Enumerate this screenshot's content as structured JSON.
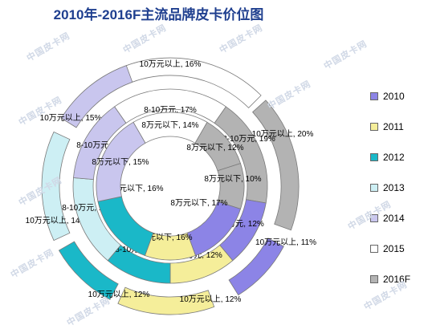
{
  "chart_data": {
    "type": "donut",
    "title": "2010年-2016F主流品牌皮卡价位图",
    "watermark": "中国皮卡网",
    "series": [
      {
        "name": "2010",
        "color": "#8C84E6",
        "segments": [
          {
            "label": "8万元以下, 17%",
            "value": 17
          },
          {
            "label": "8-10万元, 12%",
            "value": 12
          },
          {
            "label": "10万元以上, 11%",
            "value": 11
          }
        ]
      },
      {
        "name": "2011",
        "color": "#F5EE9A",
        "segments": [
          {
            "label": "8万元以下, 16%",
            "value": 16
          },
          {
            "label": "8-10万元, 12%",
            "value": 12
          },
          {
            "label": "10万元以上, 12%",
            "value": 12
          }
        ]
      },
      {
        "name": "2012",
        "color": "#1AB8C8",
        "segments": [
          {
            "label": "8万元以下, 16%",
            "value": 16
          },
          {
            "label": "8-10万元, 12%",
            "value": 12
          },
          {
            "label": "10万元以上, 12%",
            "value": 12
          }
        ]
      },
      {
        "name": "2013",
        "color": "#CDEFF4",
        "segments": [
          {
            "label": "8万元以下, 16%",
            "value": 16
          },
          {
            "label": "8-10万元, 13%",
            "value": 13
          },
          {
            "label": "10万元以上, 14%",
            "value": 14
          }
        ]
      },
      {
        "name": "2014",
        "color": "#C9C6EE",
        "segments": [
          {
            "label": "8万元以下, 15%",
            "value": 15
          },
          {
            "label": "8-10万元, 15%",
            "value": 15
          },
          {
            "label": "10万元以上, 15%",
            "value": 15
          }
        ]
      },
      {
        "name": "2015",
        "color": "#FFFFFF",
        "segments": [
          {
            "label": "8万元以下, 14%",
            "value": 14
          },
          {
            "label": "8-10万元, 17%",
            "value": 17
          },
          {
            "label": "10万元以上, 16%",
            "value": 16
          }
        ]
      },
      {
        "name": "2016F",
        "color": "#B3B3B3",
        "segments": [
          {
            "label": "8万元以下, 10%",
            "value": 10
          },
          {
            "label": "8-10万元, 19%",
            "value": 19
          },
          {
            "label": "8万元以下, 12%",
            "value": 12
          },
          {
            "label": "10万元以上, 20%",
            "value": 20
          }
        ]
      }
    ],
    "legend": {
      "position": "right"
    }
  }
}
